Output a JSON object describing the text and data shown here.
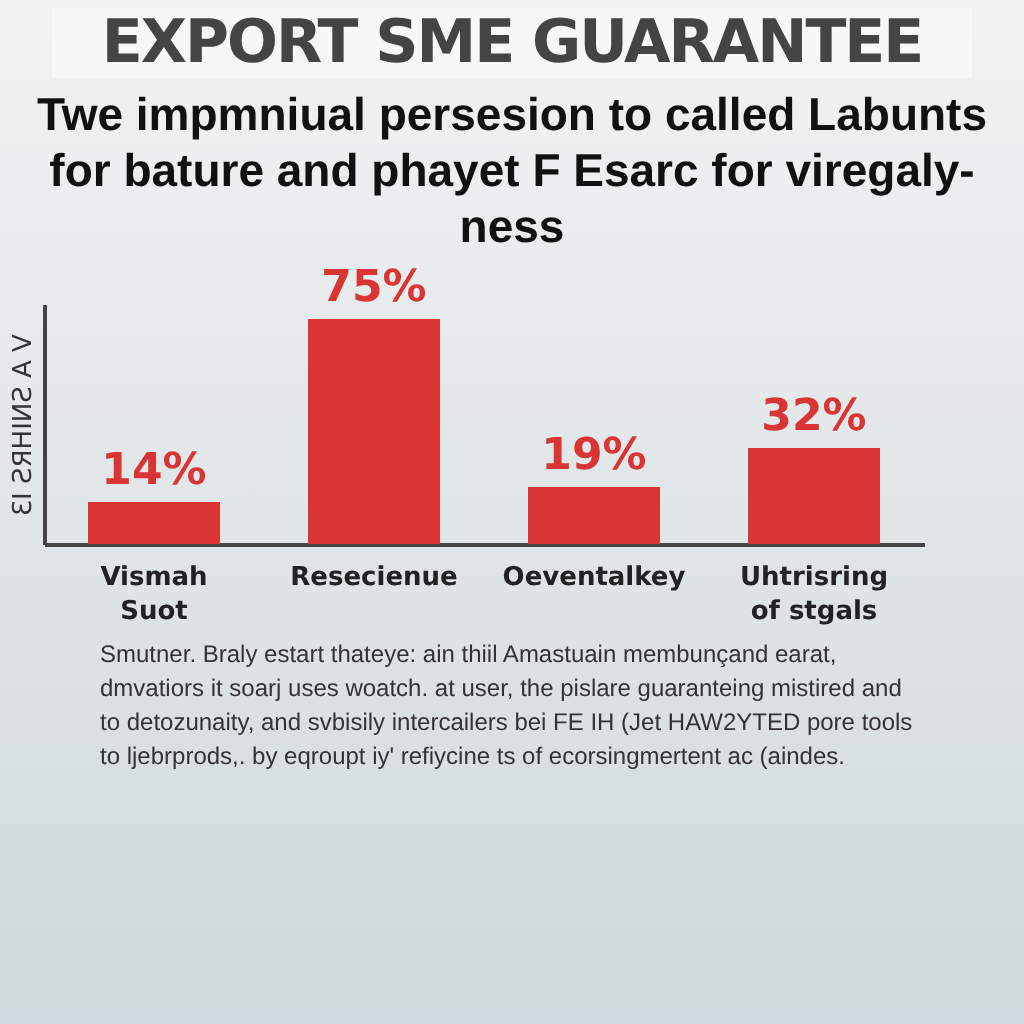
{
  "chart_data": {
    "type": "bar",
    "title": "EXPORT SME GUARANTEE",
    "subtitle": "Twe impmniual persesion to called Labunts for bature and phayet F Esarc for viregaly-ness",
    "ylabel": "ƐI ƧЯHIИƧ A V",
    "categories": [
      "Vismah\nSuot",
      "Resecienue",
      "Oeventalkey",
      "Uhtrisring\nof stgals"
    ],
    "values": [
      14,
      75,
      19,
      32
    ],
    "color": "#d93535",
    "data_labels": true,
    "grid": false,
    "value_labels": [
      "14%",
      "75%",
      "19%",
      "32%"
    ],
    "annotations": [
      "Smutner. Braly estart thateye: ain thiil Amastuain membunçand earat, dmvatiors it soarj uses woatch. at user, the pislare guaranteing mistired and to detozunaity, and svbisily intercailers bei FE IH (Jet HAW2YTED pore tools to ljebrprods,. by eqroupt iy' refiycine ts of ecorsingmertent ac (aindes."
    ]
  }
}
